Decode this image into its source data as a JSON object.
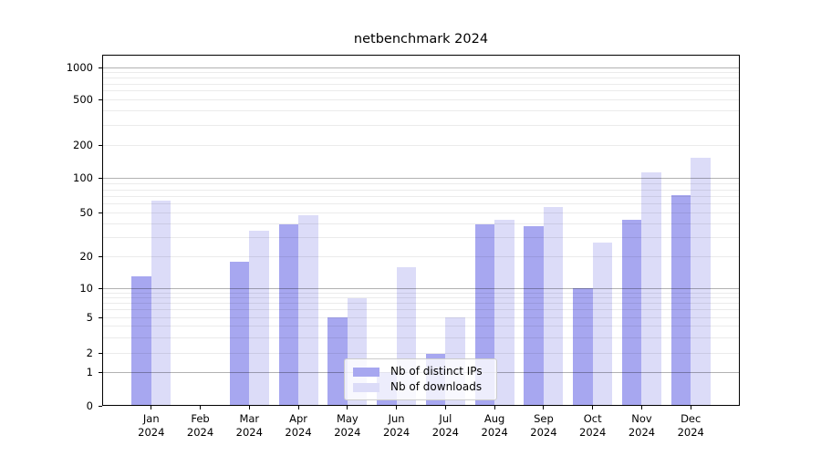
{
  "chart_data": {
    "type": "bar",
    "title": "netbenchmark 2024",
    "categories": [
      "Jan",
      "Feb",
      "Mar",
      "Apr",
      "May",
      "Jun",
      "Jul",
      "Aug",
      "Sep",
      "Oct",
      "Nov",
      "Dec"
    ],
    "category_year": "2024",
    "series": [
      {
        "name": "Nb of distinct IPs",
        "color": "#a7a7f0",
        "values": [
          13,
          0,
          18,
          40,
          5,
          1,
          2,
          40,
          38,
          10,
          44,
          72
        ]
      },
      {
        "name": "Nb of downloads",
        "color": "#dcdcf8",
        "values": [
          65,
          0,
          35,
          48,
          8,
          16,
          5,
          44,
          57,
          27,
          115,
          155
        ]
      }
    ],
    "xlabel": "",
    "ylabel": "",
    "yscale": "symlog",
    "yticks": [
      0,
      1,
      2,
      5,
      10,
      20,
      50,
      100,
      200,
      500,
      1000
    ],
    "ylim": [
      0,
      1300
    ],
    "grid": "major and minor horizontal gridlines, drawn over bars",
    "legend_position": "lower center"
  }
}
